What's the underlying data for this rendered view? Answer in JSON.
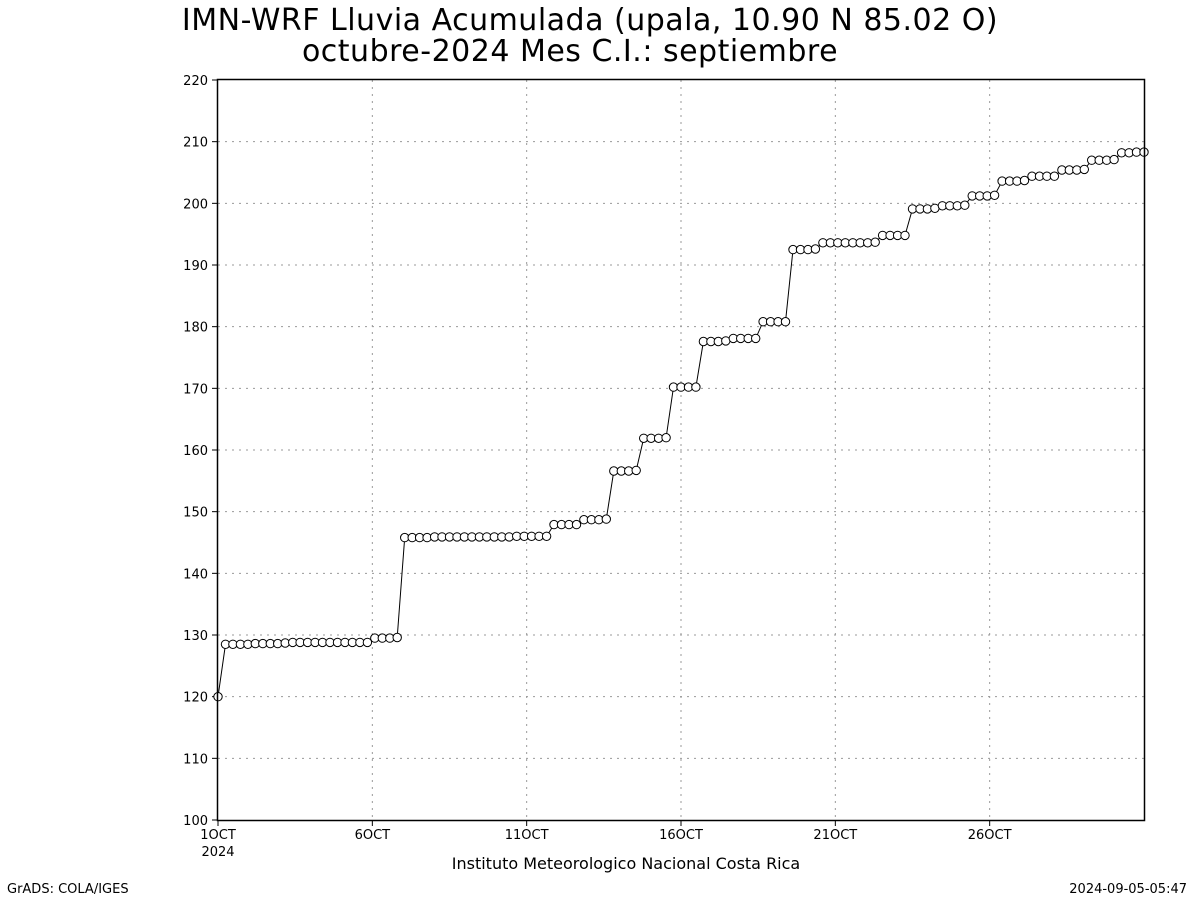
{
  "title_line1": "IMN-WRF  Lluvia Acumulada (upala, 10.90  N 85.02  O)",
  "title_line2": "octubre-2024 Mes C.I.: septiembre",
  "footer_left": "GrADS: COLA/IGES",
  "footer_right": "2024-09-05-05:47",
  "chart_data": {
    "type": "line",
    "title": "IMN-WRF  Lluvia Acumulada (upala, 10.90  N 85.02  O) octubre-2024 Mes C.I.: septiembre",
    "xlabel": "Instituto Meteorologico Nacional Costa Rica",
    "ylabel": "",
    "ylim": [
      100,
      220
    ],
    "yticks": [
      100,
      110,
      120,
      130,
      140,
      150,
      160,
      170,
      180,
      190,
      200,
      210,
      220
    ],
    "xlim": [
      1,
      31
    ],
    "xticks": [
      {
        "x": 1,
        "label": "1OCT",
        "sublabel": "2024"
      },
      {
        "x": 6,
        "label": "6OCT"
      },
      {
        "x": 11,
        "label": "11OCT"
      },
      {
        "x": 16,
        "label": "16OCT"
      },
      {
        "x": 21,
        "label": "21OCT"
      },
      {
        "x": 26,
        "label": "26OCT"
      }
    ],
    "grid": true,
    "marker": "open-circle",
    "series": [
      {
        "values": [
          120.0,
          128.5,
          128.5,
          128.5,
          128.5,
          128.6,
          128.6,
          128.6,
          128.6,
          128.7,
          128.8,
          128.8,
          128.8,
          128.8,
          128.8,
          128.8,
          128.8,
          128.8,
          128.8,
          128.8,
          128.8,
          129.5,
          129.5,
          129.5,
          129.6,
          145.8,
          145.8,
          145.8,
          145.8,
          145.9,
          145.9,
          145.9,
          145.9,
          145.9,
          145.9,
          145.9,
          145.9,
          145.9,
          145.9,
          145.9,
          146.0,
          146.0,
          146.0,
          146.0,
          146.0,
          147.9,
          147.9,
          147.9,
          147.9,
          148.7,
          148.7,
          148.7,
          148.8,
          156.6,
          156.6,
          156.6,
          156.7,
          161.9,
          161.9,
          161.9,
          162.0,
          170.2,
          170.2,
          170.2,
          170.2,
          177.6,
          177.6,
          177.6,
          177.7,
          178.1,
          178.1,
          178.1,
          178.1,
          180.8,
          180.8,
          180.8,
          180.8,
          192.5,
          192.5,
          192.5,
          192.6,
          193.6,
          193.6,
          193.6,
          193.6,
          193.6,
          193.6,
          193.6,
          193.7,
          194.8,
          194.8,
          194.8,
          194.8,
          199.1,
          199.1,
          199.1,
          199.2,
          199.6,
          199.6,
          199.6,
          199.7,
          201.2,
          201.2,
          201.2,
          201.3,
          203.6,
          203.6,
          203.6,
          203.7,
          204.4,
          204.4,
          204.4,
          204.4,
          205.4,
          205.4,
          205.4,
          205.5,
          207.0,
          207.0,
          207.0,
          207.1,
          208.2,
          208.2,
          208.3,
          208.3
        ]
      }
    ]
  }
}
